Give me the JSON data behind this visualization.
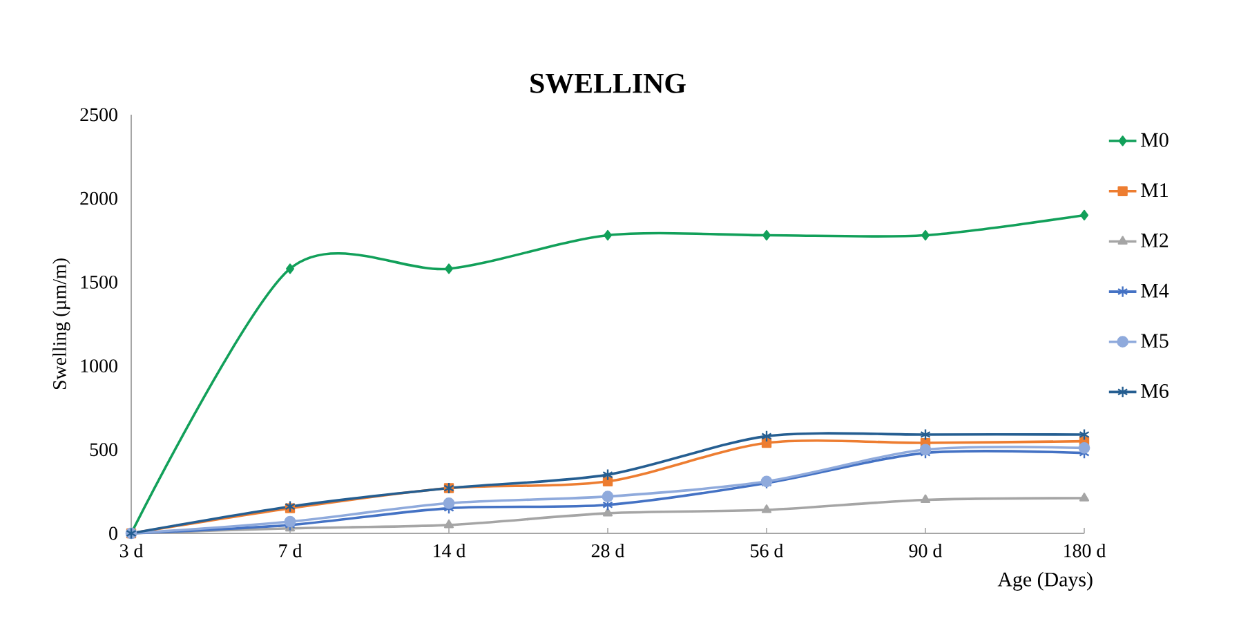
{
  "chart_data": {
    "type": "line",
    "title": "SWELLING",
    "xlabel": "Age (Days)",
    "ylabel": "Swelling (µm/m)",
    "categories": [
      "3 d",
      "7 d",
      "14 d",
      "28 d",
      "56 d",
      "90 d",
      "180 d"
    ],
    "ylim": [
      0,
      2500
    ],
    "yticks": [
      0,
      500,
      1000,
      1500,
      2000,
      2500
    ],
    "grid": false,
    "legend": "right",
    "series": [
      {
        "name": "M0",
        "color": "#12a05a",
        "marker": "diamond",
        "values": [
          0,
          1580,
          1580,
          1780,
          1780,
          1780,
          1900
        ]
      },
      {
        "name": "M1",
        "color": "#ed7d31",
        "marker": "square",
        "values": [
          0,
          150,
          270,
          310,
          540,
          540,
          550
        ]
      },
      {
        "name": "M2",
        "color": "#a5a5a5",
        "marker": "triangle",
        "values": [
          0,
          30,
          50,
          120,
          140,
          200,
          210
        ]
      },
      {
        "name": "M4",
        "color": "#4472c4",
        "marker": "cross",
        "values": [
          0,
          50,
          150,
          170,
          300,
          480,
          480
        ]
      },
      {
        "name": "M5",
        "color": "#8faadc",
        "marker": "circle",
        "values": [
          0,
          70,
          180,
          220,
          310,
          500,
          510
        ]
      },
      {
        "name": "M6",
        "color": "#255e91",
        "marker": "cross",
        "values": [
          0,
          160,
          270,
          350,
          580,
          590,
          590
        ]
      }
    ]
  }
}
